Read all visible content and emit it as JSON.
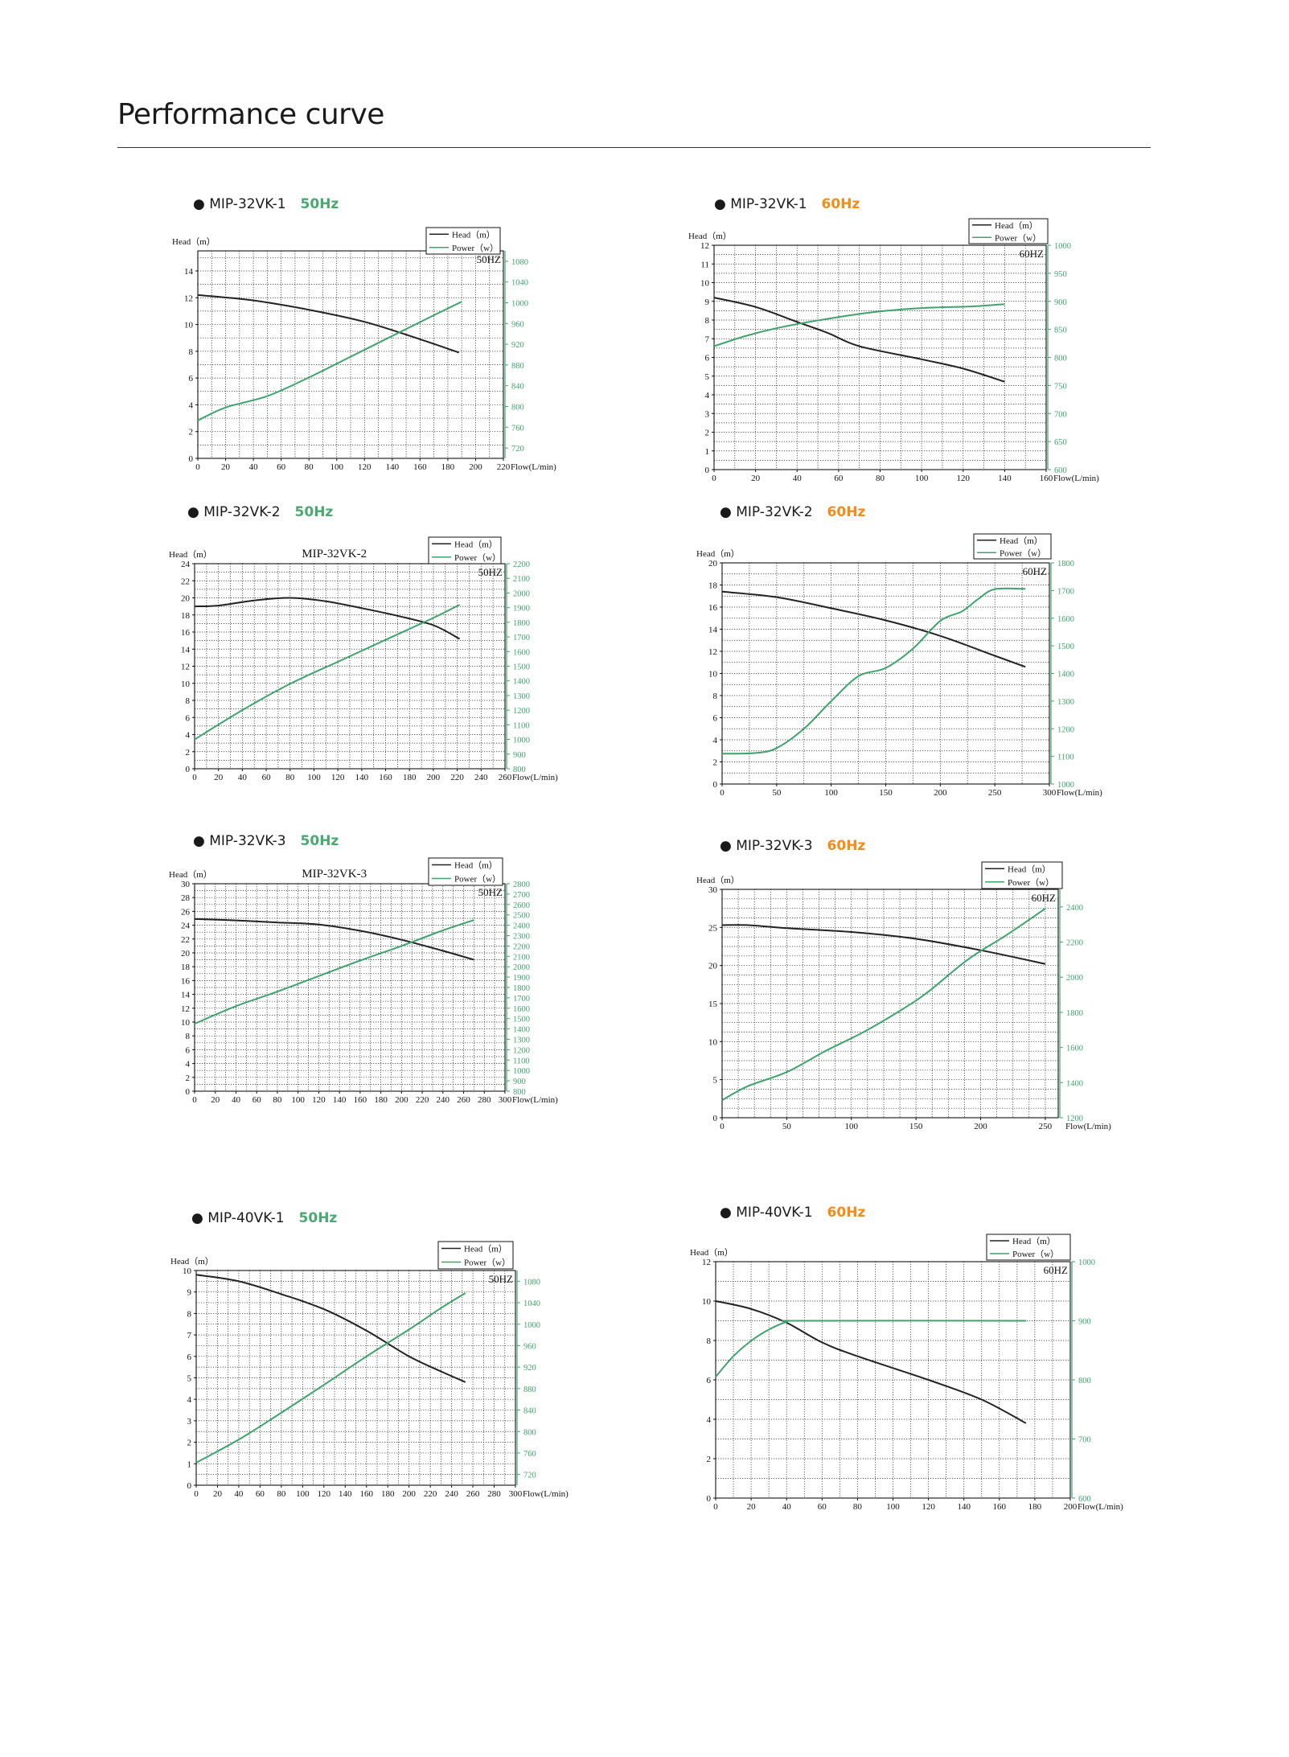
{
  "page": {
    "title": "Performance curve"
  },
  "colors": {
    "head": "#222222",
    "power": "#3fa36c",
    "hz50": "#4aa970",
    "hz60": "#f28c1a"
  },
  "chart_data": [
    {
      "type": "line",
      "model": "MIP-32VK-1",
      "freq": "50Hz",
      "freq_class": "g",
      "chart_title": "",
      "hz_label": "50HZ",
      "ylabel": "Head（m）",
      "xlabel": "Flow(L/min)",
      "legend": [
        "Head（m）",
        "Power（w）"
      ],
      "legend_placement": "top-right",
      "xlim": [
        0,
        220
      ],
      "xticks": [
        0,
        20,
        40,
        60,
        80,
        100,
        120,
        140,
        160,
        180,
        200,
        220
      ],
      "xminor": 10,
      "ylim": [
        0,
        15.5
      ],
      "yticks": [
        0,
        2,
        4,
        6,
        8,
        10,
        12,
        14
      ],
      "yminor": 1,
      "y2lim": [
        700,
        1100
      ],
      "y2ticks": [
        720,
        760,
        800,
        840,
        880,
        920,
        960,
        1000,
        1040,
        1080
      ],
      "y2_lab_top": 1080,
      "head": [
        [
          0,
          12.2
        ],
        [
          40,
          11.8
        ],
        [
          80,
          11.1
        ],
        [
          120,
          10.2
        ],
        [
          160,
          8.9
        ],
        [
          188,
          7.9
        ]
      ],
      "power": [
        [
          0,
          773
        ],
        [
          20,
          798
        ],
        [
          50,
          820
        ],
        [
          80,
          856
        ],
        [
          110,
          896
        ],
        [
          140,
          936
        ],
        [
          170,
          976
        ],
        [
          190,
          1002
        ]
      ]
    },
    {
      "type": "line",
      "model": "MIP-32VK-1",
      "freq": "60Hz",
      "freq_class": "o",
      "chart_title": "",
      "hz_label": "60HZ",
      "ylabel": "Head（m）",
      "xlabel": "Flow(L/min)",
      "legend": [
        "Head（m）",
        "Power（w）"
      ],
      "legend_placement": "top-right",
      "xlim": [
        0,
        160
      ],
      "xticks": [
        0,
        20,
        40,
        60,
        80,
        100,
        120,
        140,
        160
      ],
      "xminor": 10,
      "ylim": [
        0,
        12
      ],
      "yticks": [
        0,
        1,
        2,
        3,
        4,
        5,
        6,
        7,
        8,
        9,
        10,
        11,
        12
      ],
      "yminor": 0.5,
      "y2lim": [
        600,
        1000
      ],
      "y2ticks": [
        600,
        650,
        700,
        750,
        800,
        850,
        900,
        950,
        1000
      ],
      "y2_lab_top": 1000,
      "head": [
        [
          0,
          9.2
        ],
        [
          20,
          8.7
        ],
        [
          40,
          7.9
        ],
        [
          55,
          7.3
        ],
        [
          70,
          6.6
        ],
        [
          100,
          5.9
        ],
        [
          120,
          5.4
        ],
        [
          140,
          4.7
        ]
      ],
      "power": [
        [
          0,
          820
        ],
        [
          15,
          838
        ],
        [
          30,
          852
        ],
        [
          50,
          866
        ],
        [
          75,
          880
        ],
        [
          100,
          888
        ],
        [
          125,
          891
        ],
        [
          140,
          895
        ]
      ]
    },
    {
      "type": "line",
      "model": "MIP-32VK-2",
      "freq": "50Hz",
      "freq_class": "g",
      "chart_title": "MIP-32VK-2",
      "hz_label": "50HZ",
      "ylabel": "Head（m）",
      "xlabel": "Flow(L/min)",
      "legend": [
        "Head（m）",
        "Power（w）"
      ],
      "legend_placement": "top-right",
      "xlim": [
        0,
        260
      ],
      "xticks": [
        0,
        20,
        40,
        60,
        80,
        100,
        120,
        140,
        160,
        180,
        200,
        220,
        240,
        260
      ],
      "xminor": 10,
      "ylim": [
        0,
        24
      ],
      "yticks": [
        0,
        2,
        4,
        6,
        8,
        10,
        12,
        14,
        16,
        18,
        20,
        22,
        24
      ],
      "yminor": 1,
      "y2lim": [
        800,
        2200
      ],
      "y2ticks": [
        800,
        900,
        1000,
        1100,
        1200,
        1300,
        1400,
        1500,
        1600,
        1700,
        1800,
        1900,
        2000,
        2100,
        2200
      ],
      "y2_lab_top": 2200,
      "head": [
        [
          0,
          19.0
        ],
        [
          20,
          19.1
        ],
        [
          50,
          19.7
        ],
        [
          80,
          20.0
        ],
        [
          110,
          19.6
        ],
        [
          140,
          18.8
        ],
        [
          170,
          17.9
        ],
        [
          200,
          16.8
        ],
        [
          222,
          15.2
        ]
      ],
      "power": [
        [
          0,
          1000
        ],
        [
          40,
          1200
        ],
        [
          80,
          1380
        ],
        [
          120,
          1530
        ],
        [
          160,
          1680
        ],
        [
          200,
          1830
        ],
        [
          222,
          1920
        ]
      ]
    },
    {
      "type": "line",
      "model": "MIP-32VK-2",
      "freq": "60Hz",
      "freq_class": "o",
      "chart_title": "",
      "hz_label": "60HZ",
      "ylabel": "Head（m）",
      "xlabel": "Flow(L/min)",
      "legend": [
        "Head（m）",
        "Power（w）"
      ],
      "legend_placement": "top-right",
      "xlim": [
        0,
        300
      ],
      "xticks": [
        0,
        50,
        100,
        150,
        200,
        250,
        300
      ],
      "xminor": 25,
      "ylim": [
        0,
        20
      ],
      "yticks": [
        0,
        2,
        4,
        6,
        8,
        10,
        12,
        14,
        16,
        18,
        20
      ],
      "yminor": 1,
      "y2lim": [
        1000,
        1800
      ],
      "y2ticks": [
        1000,
        1100,
        1200,
        1300,
        1400,
        1500,
        1600,
        1700,
        1800
      ],
      "y2_lab_top": 1800,
      "head": [
        [
          0,
          17.4
        ],
        [
          50,
          16.9
        ],
        [
          100,
          15.9
        ],
        [
          150,
          14.8
        ],
        [
          200,
          13.4
        ],
        [
          250,
          11.6
        ],
        [
          278,
          10.6
        ]
      ],
      "power": [
        [
          0,
          1110
        ],
        [
          30,
          1112
        ],
        [
          50,
          1130
        ],
        [
          75,
          1200
        ],
        [
          100,
          1300
        ],
        [
          125,
          1390
        ],
        [
          150,
          1420
        ],
        [
          175,
          1490
        ],
        [
          200,
          1590
        ],
        [
          220,
          1625
        ],
        [
          235,
          1670
        ],
        [
          250,
          1705
        ],
        [
          278,
          1706
        ]
      ]
    },
    {
      "type": "line",
      "model": "MIP-32VK-3",
      "freq": "50Hz",
      "freq_class": "g",
      "chart_title": "MIP-32VK-3",
      "hz_label": "50HZ",
      "ylabel": "Head（m）",
      "xlabel": "Flow(L/min)",
      "legend": [
        "Head（m）",
        "Power（w）"
      ],
      "legend_placement": "top-right",
      "xlim": [
        0,
        300
      ],
      "xticks": [
        0,
        20,
        40,
        60,
        80,
        100,
        120,
        140,
        160,
        180,
        200,
        220,
        240,
        260,
        280,
        300
      ],
      "xminor": 10,
      "ylim": [
        0,
        30
      ],
      "yticks": [
        0,
        2,
        4,
        6,
        8,
        10,
        12,
        14,
        16,
        18,
        20,
        22,
        24,
        26,
        28,
        30
      ],
      "yminor": 1,
      "y2lim": [
        800,
        2800
      ],
      "y2ticks": [
        800,
        900,
        1000,
        1100,
        1200,
        1300,
        1400,
        1500,
        1600,
        1700,
        1800,
        1900,
        2000,
        2100,
        2200,
        2300,
        2400,
        2500,
        2600,
        2700,
        2800
      ],
      "y2_lab_top": 2800,
      "head": [
        [
          0,
          24.9
        ],
        [
          40,
          24.7
        ],
        [
          80,
          24.4
        ],
        [
          120,
          24.1
        ],
        [
          160,
          23.2
        ],
        [
          200,
          21.9
        ],
        [
          240,
          20.3
        ],
        [
          270,
          19.0
        ]
      ],
      "power": [
        [
          0,
          1450
        ],
        [
          40,
          1620
        ],
        [
          80,
          1760
        ],
        [
          120,
          1910
        ],
        [
          160,
          2060
        ],
        [
          200,
          2200
        ],
        [
          240,
          2350
        ],
        [
          270,
          2450
        ]
      ]
    },
    {
      "type": "line",
      "model": "MIP-32VK-3",
      "freq": "60Hz",
      "freq_class": "o",
      "chart_title": "",
      "hz_label": "60HZ",
      "ylabel": "Head（m）",
      "xlabel": "Flow(L/min)",
      "legend": [
        "Head（m）",
        "Power（w）"
      ],
      "legend_placement": "top-right",
      "xlim": [
        0,
        260
      ],
      "xticks": [
        0,
        50,
        100,
        150,
        200,
        250
      ],
      "xminor": 12.5,
      "ylim": [
        0,
        30
      ],
      "yticks": [
        0,
        5,
        10,
        15,
        20,
        25,
        30
      ],
      "yminor": 1.25,
      "y2lim": [
        1200,
        2500
      ],
      "y2ticks": [
        1200,
        1400,
        1600,
        1800,
        2000,
        2200,
        2400
      ],
      "y2_lab_top": 2400,
      "head": [
        [
          0,
          25.3
        ],
        [
          20,
          25.3
        ],
        [
          50,
          24.9
        ],
        [
          100,
          24.4
        ],
        [
          150,
          23.5
        ],
        [
          200,
          22.0
        ],
        [
          250,
          20.2
        ]
      ],
      "power": [
        [
          0,
          1300
        ],
        [
          20,
          1380
        ],
        [
          50,
          1460
        ],
        [
          80,
          1580
        ],
        [
          110,
          1690
        ],
        [
          140,
          1820
        ],
        [
          160,
          1920
        ],
        [
          190,
          2100
        ],
        [
          220,
          2240
        ],
        [
          250,
          2390
        ]
      ]
    },
    {
      "type": "line",
      "model": "MIP-40VK-1",
      "freq": "50Hz",
      "freq_class": "g",
      "chart_title": "",
      "hz_label": "50HZ",
      "ylabel": "Head（m）",
      "xlabel": "Flow(L/min)",
      "legend": [
        "Head（m）",
        "Power（w）"
      ],
      "legend_placement": "top-right",
      "xlim": [
        0,
        300
      ],
      "xticks": [
        0,
        20,
        40,
        60,
        80,
        100,
        120,
        140,
        160,
        180,
        200,
        220,
        240,
        260,
        280,
        300
      ],
      "xminor": 10,
      "ylim": [
        0,
        10
      ],
      "yticks": [
        0,
        1,
        2,
        3,
        4,
        5,
        6,
        7,
        8,
        9,
        10
      ],
      "yminor": 0.5,
      "y2lim": [
        700,
        1100
      ],
      "y2ticks": [
        720,
        760,
        800,
        840,
        880,
        920,
        960,
        1000,
        1040,
        1080
      ],
      "y2_lab_top": 1080,
      "head": [
        [
          0,
          9.8
        ],
        [
          40,
          9.5
        ],
        [
          80,
          8.9
        ],
        [
          120,
          8.2
        ],
        [
          160,
          7.2
        ],
        [
          200,
          6.0
        ],
        [
          230,
          5.3
        ],
        [
          253,
          4.8
        ]
      ],
      "power": [
        [
          0,
          742
        ],
        [
          40,
          785
        ],
        [
          80,
          835
        ],
        [
          120,
          887
        ],
        [
          160,
          940
        ],
        [
          200,
          990
        ],
        [
          230,
          1030
        ],
        [
          253,
          1058
        ]
      ]
    },
    {
      "type": "line",
      "model": "MIP-40VK-1",
      "freq": "60Hz",
      "freq_class": "o",
      "chart_title": "",
      "hz_label": "60HZ",
      "ylabel": "Head（m）",
      "xlabel": "Flow(L/min)",
      "legend": [
        "Head（m）",
        "Power（w）"
      ],
      "legend_placement": "top-right",
      "xlim": [
        0,
        200
      ],
      "xticks": [
        0,
        20,
        40,
        60,
        80,
        100,
        120,
        140,
        160,
        180,
        200
      ],
      "xminor": 10,
      "ylim": [
        0,
        12
      ],
      "yticks": [
        0,
        2,
        4,
        6,
        8,
        10,
        12
      ],
      "yminor": 1,
      "y2lim": [
        600,
        1000
      ],
      "y2ticks": [
        600,
        700,
        800,
        900,
        1000
      ],
      "y2_lab_top": 1000,
      "head": [
        [
          0,
          10.0
        ],
        [
          20,
          9.6
        ],
        [
          40,
          8.9
        ],
        [
          60,
          7.9
        ],
        [
          80,
          7.2
        ],
        [
          120,
          6.0
        ],
        [
          150,
          5.0
        ],
        [
          175,
          3.8
        ]
      ],
      "power": [
        [
          0,
          805
        ],
        [
          10,
          840
        ],
        [
          20,
          866
        ],
        [
          30,
          885
        ],
        [
          40,
          898
        ],
        [
          50,
          900
        ],
        [
          175,
          900
        ]
      ]
    }
  ]
}
